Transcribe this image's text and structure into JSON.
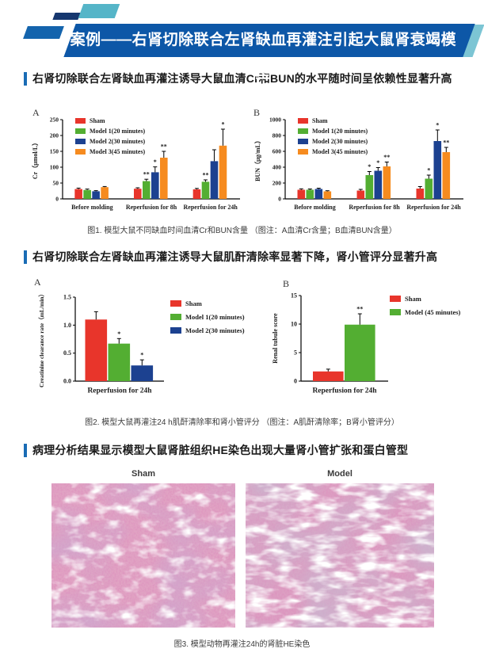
{
  "page": {
    "banner_title": "案例——右肾切除联合左肾缺血再灌注引起大鼠肾衰竭模型"
  },
  "sections": [
    {
      "heading": "右肾切除联合左肾缺血再灌注诱导大鼠血清Cr和BUN的水平随时间呈依赖性显著升高",
      "caption": "图1. 模型大鼠不同缺血时间血清Cr和BUN含量 （图注：A血清Cr含量；B血清BUN含量）"
    },
    {
      "heading": "右肾切除联合左肾缺血再灌注诱导大鼠肌酐清除率显著下降，肾小管评分显著升高",
      "caption": "图2. 模型大鼠再灌注24 h肌酐清除率和肾小管评分 （图注：A肌酐清除率；B肾小管评分）"
    },
    {
      "heading": "病理分析结果显示模型大鼠肾脏组织HE染色出现大量肾小管扩张和蛋白管型",
      "caption": "图3. 模型动物再灌注24h的肾脏HE染色",
      "image_labels": {
        "left": "Sham",
        "right": "Model"
      }
    }
  ],
  "colors": {
    "banner_blue": "#0d57a7",
    "accent_teal": "#55b5c8",
    "heading_bar": "#1a6cb5",
    "sham_red": "#e8352b",
    "model1_green": "#53ae32",
    "model2_blue": "#1c4190",
    "model3_orange": "#f68b1f"
  },
  "chart_data": [
    {
      "type": "bar",
      "panel": "A",
      "ylabel": "Cr（μmol/L）",
      "xlabel": "",
      "ylim": [
        0,
        250
      ],
      "yticks": [
        0,
        50,
        100,
        150,
        200,
        250
      ],
      "grid": false,
      "legend_position": "top-left",
      "categories": [
        "Before molding",
        "Reperfusion for 8h",
        "Reperfusion for 24h"
      ],
      "series": [
        {
          "name": "Sham",
          "color": "#e8352b",
          "values": [
            31,
            32,
            30
          ],
          "errors": [
            3,
            3,
            3
          ],
          "sig": [
            "",
            "",
            ""
          ]
        },
        {
          "name": "Model 1(20 minutes)",
          "color": "#53ae32",
          "values": [
            28,
            56,
            54
          ],
          "errors": [
            3,
            6,
            6
          ],
          "sig": [
            "",
            "**",
            "**"
          ]
        },
        {
          "name": "Model 2(30 minutes)",
          "color": "#1c4190",
          "values": [
            24,
            84,
            119
          ],
          "errors": [
            2,
            17,
            36
          ],
          "sig": [
            "",
            "*",
            ""
          ]
        },
        {
          "name": "Model 3(45 minutes)",
          "color": "#f68b1f",
          "values": [
            37,
            130,
            168
          ],
          "errors": [
            2,
            20,
            52
          ],
          "sig": [
            "",
            "**",
            "*"
          ]
        }
      ]
    },
    {
      "type": "bar",
      "panel": "B",
      "ylabel": "BUN（μg/mL）",
      "xlabel": "",
      "ylim": [
        0,
        1000
      ],
      "yticks": [
        0,
        200,
        400,
        600,
        800,
        1000
      ],
      "grid": false,
      "legend_position": "top-left",
      "categories": [
        "Before molding",
        "Reperfusion for 8h",
        "Reperfusion for 24h"
      ],
      "series": [
        {
          "name": "Sham",
          "color": "#e8352b",
          "values": [
            115,
            105,
            130
          ],
          "errors": [
            12,
            15,
            25
          ],
          "sig": [
            "",
            "",
            ""
          ]
        },
        {
          "name": "Model 1(20 minutes)",
          "color": "#53ae32",
          "values": [
            115,
            300,
            255
          ],
          "errors": [
            10,
            45,
            45
          ],
          "sig": [
            "",
            "*",
            "*"
          ]
        },
        {
          "name": "Model 2(30 minutes)",
          "color": "#1c4190",
          "values": [
            125,
            355,
            730
          ],
          "errors": [
            10,
            40,
            140
          ],
          "sig": [
            "",
            "*",
            "*"
          ]
        },
        {
          "name": "Model 3(45 minutes)",
          "color": "#f68b1f",
          "values": [
            95,
            410,
            590
          ],
          "errors": [
            8,
            55,
            60
          ],
          "sig": [
            "",
            "**",
            "**"
          ]
        }
      ]
    },
    {
      "type": "bar",
      "panel": "A",
      "ylabel": "Creatinine clearance rate（mL/min）",
      "xlabel": "",
      "ylim": [
        0,
        1.5
      ],
      "yticks": [
        0,
        0.5,
        1.0,
        1.5
      ],
      "ytick_labels": [
        "0.0",
        "0.5",
        "1.0",
        "1.5"
      ],
      "grid": false,
      "legend_position": "right",
      "categories": [
        "Reperfusion for 24h"
      ],
      "series": [
        {
          "name": "Sham",
          "color": "#e8352b",
          "values": [
            1.1
          ],
          "errors": [
            0.14
          ],
          "sig": [
            ""
          ]
        },
        {
          "name": "Model 1(20 minutes)",
          "color": "#53ae32",
          "values": [
            0.67
          ],
          "errors": [
            0.09
          ],
          "sig": [
            "*"
          ]
        },
        {
          "name": "Model 2(30 minutes)",
          "color": "#1c4190",
          "values": [
            0.28
          ],
          "errors": [
            0.1
          ],
          "sig": [
            "*"
          ]
        }
      ]
    },
    {
      "type": "bar",
      "panel": "B",
      "ylabel": "Renal tubule score",
      "xlabel": "",
      "ylim": [
        0,
        15
      ],
      "yticks": [
        0,
        5,
        10,
        15
      ],
      "grid": false,
      "legend_position": "right",
      "categories": [
        "Reperfusion for 24h"
      ],
      "series": [
        {
          "name": "Sham",
          "color": "#e8352b",
          "values": [
            1.7
          ],
          "errors": [
            0.4
          ],
          "sig": [
            ""
          ]
        },
        {
          "name": "Model (45 minutes)",
          "color": "#53ae32",
          "values": [
            9.9
          ],
          "errors": [
            1.9
          ],
          "sig": [
            "**"
          ]
        }
      ]
    }
  ]
}
